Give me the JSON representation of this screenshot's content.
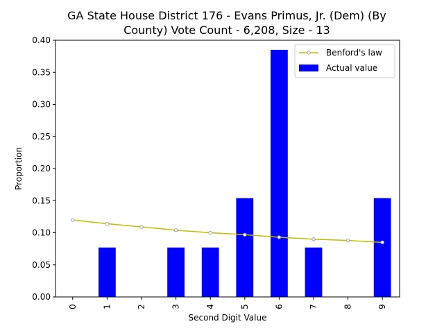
{
  "chart_data": {
    "type": "bar",
    "title_lines": [
      "GA State House District 176 - Evans Primus, Jr. (Dem) (By",
      "County) Vote Count - 6,208, Size - 13"
    ],
    "xlabel": "Second Digit Value",
    "ylabel": "Proportion",
    "categories": [
      "0",
      "1",
      "2",
      "3",
      "4",
      "5",
      "6",
      "7",
      "8",
      "9"
    ],
    "ylim": [
      0,
      0.4
    ],
    "yticks": [
      "0.00",
      "0.05",
      "0.10",
      "0.15",
      "0.20",
      "0.25",
      "0.30",
      "0.35",
      "0.40"
    ],
    "grid": false,
    "legend_position": "top-right",
    "series": [
      {
        "name": "Benford's law",
        "kind": "line",
        "color": "#bfbf00",
        "marker_color": "#a0a0a0",
        "values": [
          0.12,
          0.114,
          0.109,
          0.104,
          0.1,
          0.097,
          0.093,
          0.09,
          0.088,
          0.085
        ]
      },
      {
        "name": "Actual value",
        "kind": "bar",
        "color": "#0000ff",
        "values": [
          0.0,
          0.077,
          0.0,
          0.077,
          0.077,
          0.154,
          0.385,
          0.077,
          0.0,
          0.154
        ]
      }
    ]
  }
}
